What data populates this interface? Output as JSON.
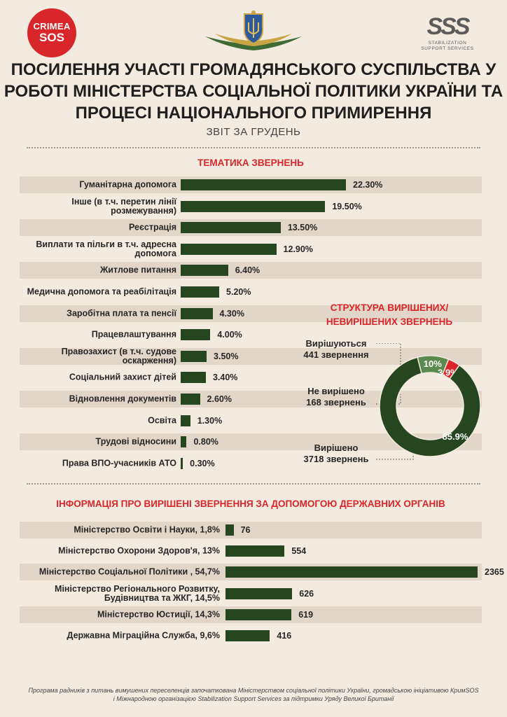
{
  "logos": {
    "crimea_line1": "CRIMEA",
    "crimea_line2": "SOS",
    "sss_mark": "SSS",
    "sss_line1": "STABILIZATION",
    "sss_line2": "SUPPORT SERVICES"
  },
  "title": [
    "ПОСИЛЕННЯ УЧАСТІ ГРОМАДЯНСЬКОГО СУСПІЛЬСТВА У",
    "РОБОТІ МІНІСТЕРСТВА СОЦІАЛЬНОЇ ПОЛІТИКИ УКРАЇНИ ТА",
    "ПРОЦЕСІ НАЦІОНАЛЬНОГО ПРИМИРЕННЯ"
  ],
  "subtitle": "ЗВІТ ЗА ГРУДЕНЬ",
  "colors": {
    "bar": "#25461f",
    "accent_red": "#d8262a",
    "donut_light": "#5b8a4e",
    "donut_dark": "#25461f"
  },
  "chart_data": [
    {
      "type": "bar",
      "orientation": "horizontal",
      "title": "ТЕМАТИКА ЗВЕРНЕНЬ",
      "categories": [
        "Гуманітарна допомога",
        "Інше (в т.ч. перетин лінії розмежування)",
        "Реєстрація",
        "Виплати та пільги в т.ч. адресна допомога",
        "Житлове питання",
        "Медична допомога та реабілітація",
        "Заробітна плата та пенсії",
        "Працевлаштування",
        "Правозахист (в т.ч. судове оскарження)",
        "Соціальний захист дітей",
        "Відновлення документів",
        "Освіта",
        "Трудові відносини",
        "Права ВПО-учасників АТО"
      ],
      "values": [
        22.3,
        19.5,
        13.5,
        12.9,
        6.4,
        5.2,
        4.3,
        4.0,
        3.5,
        3.4,
        2.6,
        1.3,
        0.8,
        0.3
      ],
      "value_labels": [
        "22.30%",
        "19.50%",
        "13.50%",
        "12.90%",
        "6.40%",
        "5.20%",
        "4.30%",
        "4.00%",
        "3.50%",
        "3.40%",
        "2.60%",
        "1.30%",
        "0.80%",
        "0.30%"
      ]
    },
    {
      "type": "pie",
      "title": "СТРУКТУРА ВИРІШЕНИХ/ НЕВИРІШЕНИХ ЗВЕРНЕНЬ",
      "slices": [
        {
          "name": "Вирішуються",
          "count_label": "441 звернення",
          "value": 10,
          "value_label": "10%",
          "color": "#5b8a4e"
        },
        {
          "name": "Не вирішено",
          "count_label": "168 звернень",
          "value": 3.9,
          "value_label": "3.9%",
          "color": "#d8262a"
        },
        {
          "name": "Вирішено",
          "count_label": "3718 звернень",
          "value": 85.9,
          "value_label": "85.9%",
          "color": "#25461f"
        }
      ]
    },
    {
      "type": "bar",
      "orientation": "horizontal",
      "title": "ІНФОРМАЦІЯ ПРО ВИРІШЕНІ ЗВЕРНЕННЯ ЗА ДОПОМОГОЮ ДЕРЖАВНИХ ОРГАНІВ",
      "categories": [
        "Міністерство Освіти і Науки, 1,8%",
        "Міністерство Охорони Здоров'я, 13%",
        "Міністерство Соціальної Політики , 54,7%",
        "Міністерство Регіонального Розвитку, Будівництва та ЖКГ, 14,5%",
        "Міністерство Юстиції, 14,3%",
        "Державна Міграційна Служба, 9,6%"
      ],
      "values": [
        76,
        554,
        2365,
        626,
        619,
        416
      ]
    }
  ],
  "footer": "Програма радників з питань вимушених переселенців започаткована Міністерством соціальної політики України, громадською ініціативою КримSOS і Міжнародною організацією Stabilization Support Services за підтримки Уряду Великої Британії"
}
